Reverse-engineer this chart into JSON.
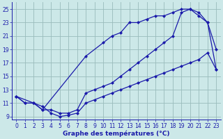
{
  "line1_x": [
    0,
    1,
    2,
    3,
    8,
    10,
    11,
    12,
    13,
    14,
    15,
    16,
    17,
    18,
    19,
    20,
    21,
    22,
    23
  ],
  "line1_y": [
    12,
    11,
    11,
    10,
    18,
    20,
    21,
    21.5,
    23,
    23,
    23.5,
    24,
    24,
    24.5,
    25,
    25,
    24,
    23,
    19
  ],
  "line2_x": [
    0,
    1,
    2,
    3,
    4,
    5,
    6,
    7,
    8,
    9,
    10,
    11,
    12,
    13,
    14,
    15,
    16,
    17,
    18,
    19,
    20,
    21,
    22,
    23
  ],
  "line2_y": [
    12,
    11,
    11,
    10,
    10,
    9.5,
    9.5,
    10,
    12.5,
    13,
    13.5,
    14,
    15,
    16,
    17,
    18,
    19,
    20,
    21,
    24.5,
    25,
    24.5,
    23,
    16
  ],
  "line3_x": [
    0,
    2,
    3,
    4,
    5,
    6,
    7,
    8,
    9,
    10,
    11,
    12,
    13,
    14,
    15,
    16,
    17,
    18,
    19,
    20,
    21,
    22,
    23
  ],
  "line3_y": [
    12,
    11,
    10.5,
    9.5,
    9,
    9.2,
    9.5,
    11,
    11.5,
    12,
    12.5,
    13,
    13.5,
    14,
    14.5,
    15,
    15.5,
    16,
    16.5,
    17,
    17.5,
    18.5,
    16
  ],
  "line_color": "#1a1aaa",
  "bg_color": "#cce8e8",
  "grid_color": "#99bbbb",
  "xlabel": "Graphe des températures (°C)",
  "xlim": [
    -0.5,
    23.5
  ],
  "ylim": [
    8.5,
    26
  ],
  "xticks": [
    0,
    1,
    2,
    3,
    4,
    5,
    6,
    7,
    8,
    9,
    10,
    11,
    12,
    13,
    14,
    15,
    16,
    17,
    18,
    19,
    20,
    21,
    22,
    23
  ],
  "yticks": [
    9,
    11,
    13,
    15,
    17,
    19,
    21,
    23,
    25
  ],
  "xlabel_fontsize": 6.5,
  "tick_fontsize": 5.5
}
